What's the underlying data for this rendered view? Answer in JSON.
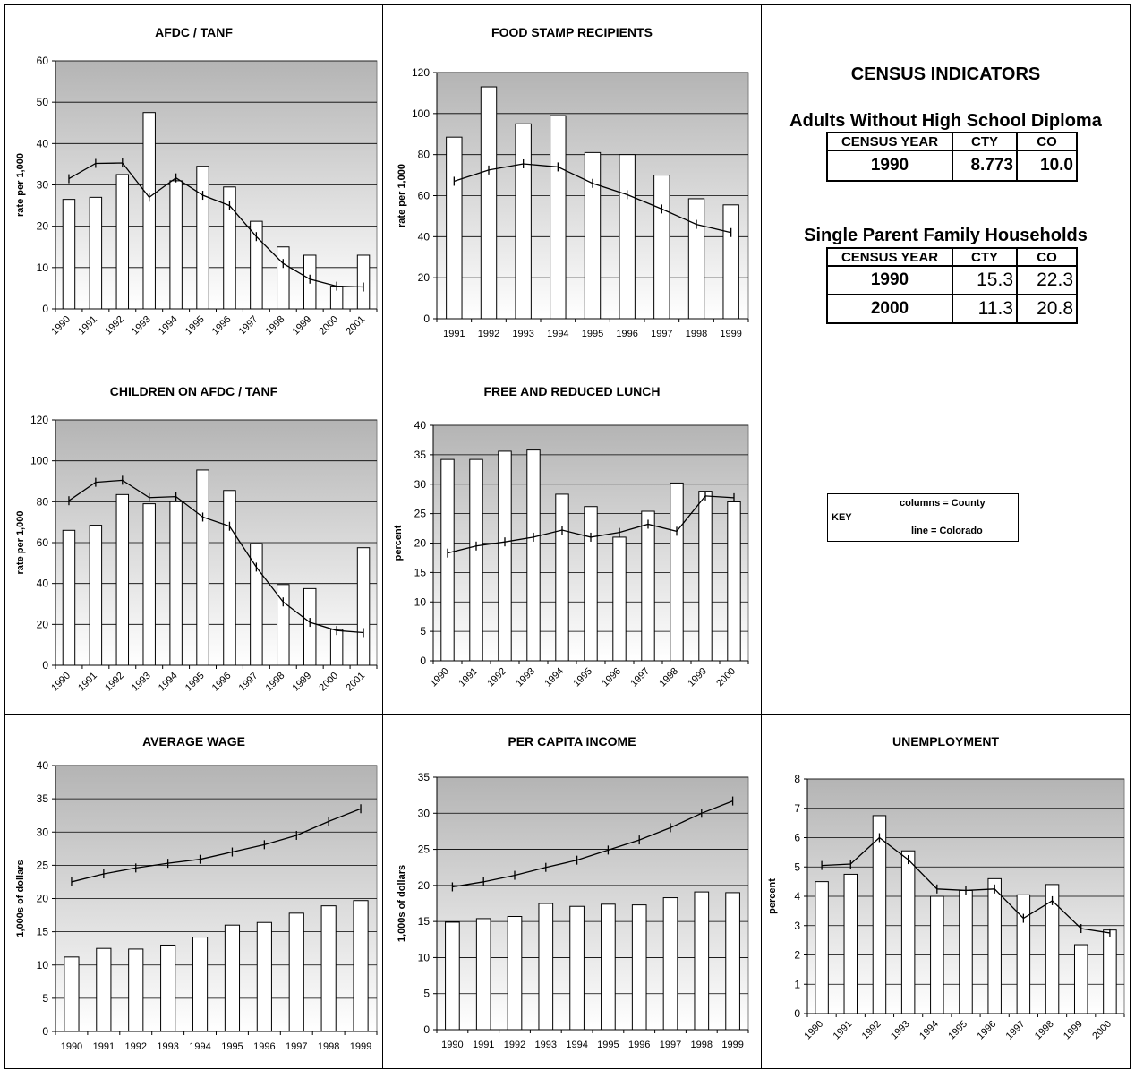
{
  "panels": [
    {
      "id": "afdc",
      "chart_data": {
        "type": "bar",
        "title": "AFDC / TANF",
        "ylabel": "rate per 1,000",
        "xlabel": "",
        "ylim": [
          0,
          60
        ],
        "ystep": 10,
        "rotate_labels": true,
        "grid": true,
        "categories": [
          "1990",
          "1991",
          "1992",
          "1993",
          "1994",
          "1995",
          "1996",
          "1997",
          "1998",
          "1999",
          "2000",
          "2001"
        ],
        "series": [
          {
            "kind": "columns",
            "values": [
              26.5,
              27,
              32.5,
              47.5,
              31,
              34.5,
              29.5,
              21.2,
              15,
              13,
              5.5,
              13
            ]
          },
          {
            "kind": "line",
            "values": [
              31.5,
              35.2,
              35.3,
              27,
              31.7,
              27.5,
              25,
              17.5,
              11,
              7.2,
              5.5,
              5.3
            ]
          }
        ]
      }
    },
    {
      "id": "food",
      "chart_data": {
        "type": "bar",
        "title": "FOOD STAMP RECIPIENTS",
        "ylabel": "rate per 1,000",
        "xlabel": "",
        "ylim": [
          0,
          120
        ],
        "ystep": 20,
        "rotate_labels": false,
        "grid": true,
        "categories": [
          "1991",
          "1992",
          "1993",
          "1994",
          "1995",
          "1996",
          "1997",
          "1998",
          "1999"
        ],
        "series": [
          {
            "kind": "columns",
            "values": [
              88.5,
              113,
              95,
              99,
              81,
              80,
              70,
              58.5,
              55.5
            ]
          },
          {
            "kind": "line",
            "values": [
              67,
              72.5,
              75.5,
              74,
              66,
              60.5,
              53.5,
              46,
              42
            ]
          }
        ]
      }
    },
    {
      "id": "children",
      "chart_data": {
        "type": "bar",
        "title": "CHILDREN ON AFDC / TANF",
        "ylabel": "rate per 1,000",
        "xlabel": "",
        "ylim": [
          0,
          120
        ],
        "ystep": 20,
        "rotate_labels": true,
        "grid": true,
        "categories": [
          "1990",
          "1991",
          "1992",
          "1993",
          "1994",
          "1995",
          "1996",
          "1997",
          "1998",
          "1999",
          "2000",
          "2001"
        ],
        "series": [
          {
            "kind": "columns",
            "values": [
              66,
              68.5,
              83.5,
              79,
              80,
              95.5,
              85.5,
              59.5,
              39.5,
              37.5,
              17.5,
              57.5
            ]
          },
          {
            "kind": "line",
            "values": [
              80.5,
              89.5,
              90.5,
              82,
              82.5,
              72.5,
              68,
              48,
              31,
              21,
              17,
              16
            ]
          }
        ]
      }
    },
    {
      "id": "lunch",
      "chart_data": {
        "type": "bar",
        "title": "FREE AND REDUCED LUNCH",
        "ylabel": "percent",
        "xlabel": "",
        "ylim": [
          0,
          40
        ],
        "ystep": 5,
        "rotate_labels": true,
        "grid": true,
        "categories": [
          "1990",
          "1991",
          "1992",
          "1993",
          "1994",
          "1995",
          "1996",
          "1997",
          "1998",
          "1999",
          "2000"
        ],
        "series": [
          {
            "kind": "columns",
            "values": [
              34.2,
              34.2,
              35.6,
              35.8,
              28.3,
              26.2,
              21,
              25.4,
              30.2,
              28.8,
              27
            ]
          },
          {
            "kind": "line",
            "values": [
              18.3,
              19.5,
              20.2,
              21,
              22.2,
              21,
              21.8,
              23.2,
              22,
              28,
              27.7
            ]
          }
        ]
      }
    },
    {
      "id": "wage",
      "chart_data": {
        "type": "bar",
        "title": "AVERAGE WAGE",
        "ylabel": "1,000s of dollars",
        "xlabel": "",
        "ylim": [
          0,
          40
        ],
        "ystep": 5,
        "rotate_labels": false,
        "grid": true,
        "categories": [
          "1990",
          "1991",
          "1992",
          "1993",
          "1994",
          "1995",
          "1996",
          "1997",
          "1998",
          "1999"
        ],
        "series": [
          {
            "kind": "columns",
            "values": [
              11.2,
              12.5,
              12.4,
              13,
              14.2,
              16,
              16.4,
              17.8,
              18.9,
              19.7
            ]
          },
          {
            "kind": "line",
            "values": [
              22.5,
              23.7,
              24.6,
              25.3,
              25.9,
              27,
              28.1,
              29.5,
              31.6,
              33.5
            ]
          }
        ]
      }
    },
    {
      "id": "income",
      "chart_data": {
        "type": "bar",
        "title": "PER CAPITA INCOME",
        "ylabel": "1,000s of dollars",
        "xlabel": "",
        "ylim": [
          0,
          35
        ],
        "ystep": 5,
        "rotate_labels": false,
        "grid": true,
        "categories": [
          "1990",
          "1991",
          "1992",
          "1993",
          "1994",
          "1995",
          "1996",
          "1997",
          "1998",
          "1999"
        ],
        "series": [
          {
            "kind": "columns",
            "values": [
              14.9,
              15.4,
              15.7,
              17.5,
              17.1,
              17.4,
              17.3,
              18.3,
              19.1,
              19
            ]
          },
          {
            "kind": "line",
            "values": [
              19.8,
              20.5,
              21.4,
              22.5,
              23.5,
              24.9,
              26.3,
              28,
              30,
              31.7
            ]
          }
        ]
      }
    },
    {
      "id": "unemployment",
      "chart_data": {
        "type": "bar",
        "title": "UNEMPLOYMENT",
        "ylabel": "percent",
        "xlabel": "",
        "ylim": [
          0,
          8
        ],
        "ystep": 1,
        "rotate_labels": true,
        "grid": true,
        "categories": [
          "1990",
          "1991",
          "1992",
          "1993",
          "1994",
          "1995",
          "1996",
          "1997",
          "1998",
          "1999",
          "2000"
        ],
        "series": [
          {
            "kind": "columns",
            "values": [
              4.5,
              4.75,
              6.75,
              5.55,
              4,
              4.2,
              4.6,
              4.05,
              4.4,
              2.35,
              2.85
            ]
          },
          {
            "kind": "line",
            "values": [
              5.05,
              5.1,
              6,
              5.25,
              4.25,
              4.2,
              4.25,
              3.25,
              3.85,
              2.9,
              2.75
            ]
          }
        ]
      }
    }
  ],
  "census": {
    "title": "CENSUS INDICATORS",
    "diploma": {
      "heading": "Adults Without High School Diploma",
      "headers": [
        "CENSUS YEAR",
        "CTY",
        "CO"
      ],
      "rows": [
        [
          "1990",
          "8.773",
          "10.0"
        ]
      ]
    },
    "single_parent": {
      "heading": "Single Parent Family Households",
      "headers": [
        "CENSUS YEAR",
        "CTY",
        "CO"
      ],
      "rows": [
        [
          "1990",
          "15.3",
          "22.3"
        ],
        [
          "2000",
          "11.3",
          "20.8"
        ]
      ]
    }
  },
  "key": {
    "label": "KEY",
    "columns_text": "columns = County",
    "line_text": "line = Colorado"
  }
}
